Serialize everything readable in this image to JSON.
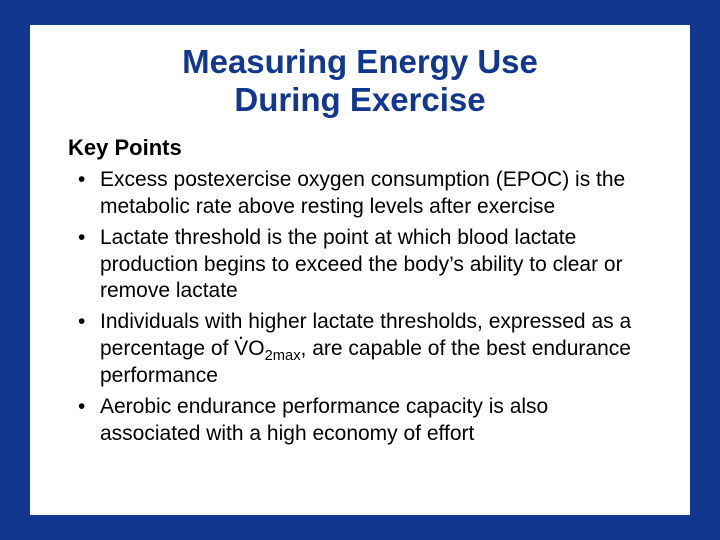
{
  "colors": {
    "border": "#11378f",
    "content_bg": "#ffffff",
    "title_color": "#11378f",
    "text_color": "#000000"
  },
  "title_line1": "Measuring Energy Use",
  "title_line2": "During Exercise",
  "subheading": "Key Points",
  "bullets": [
    "Excess postexercise oxygen consumption (EPOC) is the metabolic rate above resting levels after exercise",
    "Lactate threshold is the point at which blood lactate production begins to exceed the body’s ability to clear or remove lactate",
    {
      "pre": "Individuals with higher lactate thresholds, expressed as a percentage of ",
      "vo2": true,
      "post": ", are capable of the best endurance performance"
    },
    "Aerobic endurance performance capacity is also associated with a high economy of effort"
  ]
}
